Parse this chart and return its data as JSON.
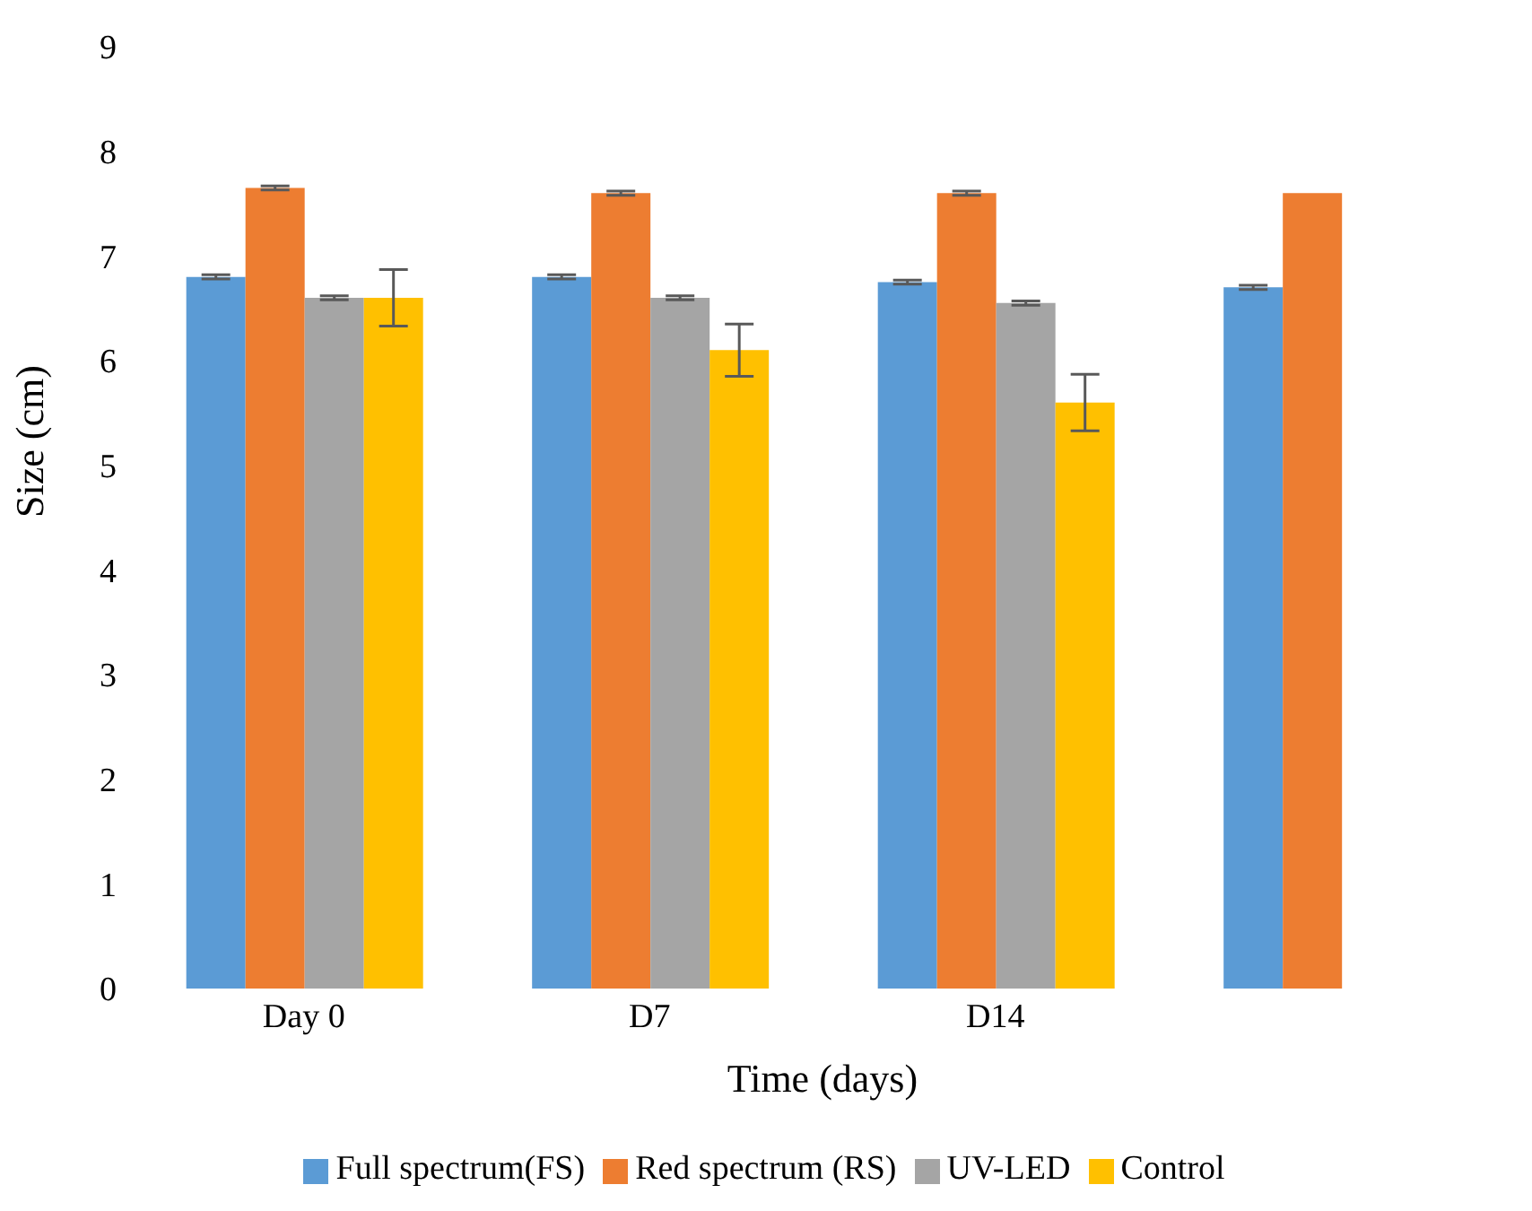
{
  "chart_data": {
    "type": "bar",
    "xlabel": "Time (days)",
    "ylabel": "Size (cm)",
    "categories": [
      "Day 0",
      "D7",
      "D14",
      null
    ],
    "series": [
      {
        "name": "Full spectrum(FS)",
        "color": "#5b9bd5",
        "values": [
          6.8,
          6.8,
          6.75,
          6.7
        ],
        "errors": [
          0.02,
          0.02,
          0.02,
          0.02
        ]
      },
      {
        "name": "Red spectrum (RS)",
        "color": "#ed7d31",
        "values": [
          7.65,
          7.6,
          7.6,
          7.6
        ],
        "errors": [
          0.02,
          0.02,
          0.02,
          null
        ]
      },
      {
        "name": "UV-LED",
        "color": "#a5a5a5",
        "values": [
          6.6,
          6.6,
          6.55,
          null
        ],
        "errors": [
          0.02,
          0.02,
          0.02,
          null
        ]
      },
      {
        "name": "Control",
        "color": "#ffc000",
        "values": [
          6.6,
          6.1,
          5.6,
          null
        ],
        "errors": [
          0.27,
          0.25,
          0.27,
          null
        ]
      }
    ],
    "ylim": [
      0,
      9
    ],
    "yticks": [
      0,
      1,
      2,
      3,
      4,
      5,
      6,
      7,
      8,
      9
    ],
    "grid": false,
    "legend": "bottom"
  }
}
